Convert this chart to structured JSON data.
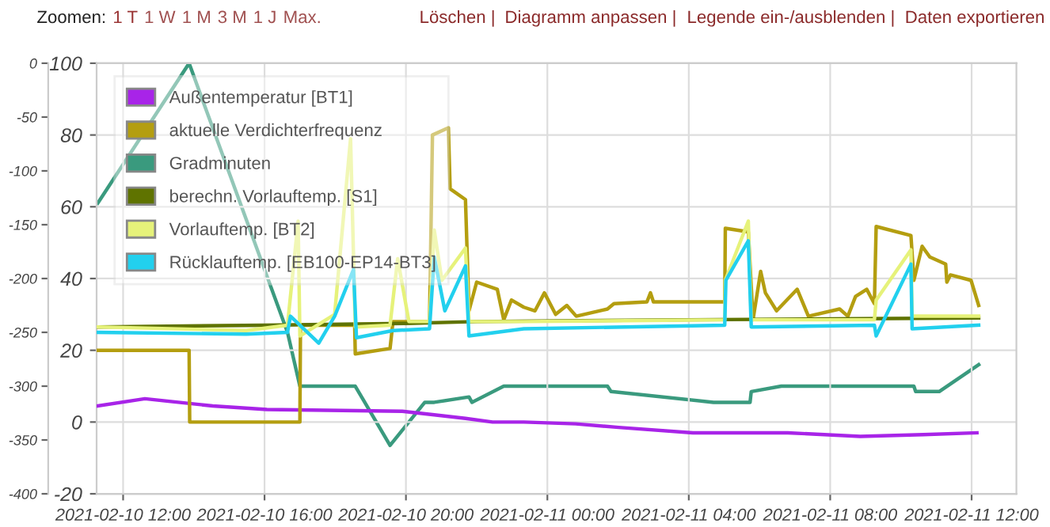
{
  "chart_data": {
    "type": "line",
    "annotations": [
      "Zoomen:",
      "1 T",
      "1 W",
      "1 M",
      "3 M",
      "1 J",
      "Max.",
      "Löschen |",
      "Diagramm anpassen |",
      "Legende ein-/ausblenden |",
      "Daten exportieren"
    ],
    "xlim": [
      "2021-02-10T11:15",
      "2021-02-11T13:16"
    ],
    "xticks": [
      {
        "value": "2021-02-10T12:00",
        "label": "2021-02-10 12:00"
      },
      {
        "value": "2021-02-10T16:00",
        "label": "2021-02-10 16:00"
      },
      {
        "value": "2021-02-10T20:00",
        "label": "2021-02-10 20:00"
      },
      {
        "value": "2021-02-11T00:00",
        "label": "2021-02-11 00:00"
      },
      {
        "value": "2021-02-11T04:00",
        "label": "2021-02-11 04:00"
      },
      {
        "value": "2021-02-11T08:00",
        "label": "2021-02-11 08:00"
      },
      {
        "value": "2021-02-11T12:00",
        "label": "2021-02-11 12:00"
      }
    ],
    "ylim": [
      -20,
      100
    ],
    "yticks": [
      -20,
      0,
      20,
      40,
      60,
      80,
      100
    ],
    "y2lim": [
      -400,
      0
    ],
    "y2ticks": [
      -400,
      -350,
      -300,
      -250,
      -200,
      -150,
      -100,
      -50,
      0
    ],
    "grid": true,
    "legend": "top left",
    "marker": "none",
    "line_style": "solid",
    "series": [
      {
        "name": "Außentemperatur [BT1]",
        "color": "#a824e8",
        "x": [
          "2021-02-10T11:17",
          "2021-02-10T12:37",
          "2021-02-10T14:32",
          "2021-02-10T16:04",
          "2021-02-10T19:54",
          "2021-02-10T20:48",
          "2021-02-10T21:41",
          "2021-02-10T22:27",
          "2021-02-10T23:20",
          "2021-02-11T00:48",
          "2021-02-11T02:01",
          "2021-02-11T04:07",
          "2021-02-11T06:48",
          "2021-02-11T08:51",
          "2021-02-11T10:38",
          "2021-02-11T12:09"
        ],
        "values": [
          4.5,
          6.5,
          4.5,
          3.5,
          3,
          2,
          1,
          0,
          0,
          -0.5,
          -1.5,
          -3,
          -3,
          -4,
          -3.5,
          -3
        ]
      },
      {
        "name": "aktuelle Verdichterfrequenz",
        "color": "#b49e10",
        "x": [
          "2021-02-10T11:17",
          "2021-02-10T13:52",
          "2021-02-10T13:53",
          "2021-02-10T17:00",
          "2021-02-10T17:01",
          "2021-02-10T18:33",
          "2021-02-10T18:34",
          "2021-02-10T19:33",
          "2021-02-10T19:38",
          "2021-02-10T20:40",
          "2021-02-10T20:45",
          "2021-02-10T21:12",
          "2021-02-10T21:15",
          "2021-02-10T21:41",
          "2021-02-10T21:47",
          "2021-02-10T22:00",
          "2021-02-10T22:35",
          "2021-02-10T22:46",
          "2021-02-10T22:59",
          "2021-02-10T23:20",
          "2021-02-10T23:39",
          "2021-02-10T23:55",
          "2021-02-11T00:14",
          "2021-02-11T00:33",
          "2021-02-11T00:49",
          "2021-02-11T01:42",
          "2021-02-11T01:53",
          "2021-02-11T02:49",
          "2021-02-11T02:55",
          "2021-02-11T03:00",
          "2021-02-11T05:01",
          "2021-02-11T05:02",
          "2021-02-11T05:41",
          "2021-02-11T05:49",
          "2021-02-11T06:02",
          "2021-02-11T06:10",
          "2021-02-11T06:29",
          "2021-02-11T07:04",
          "2021-02-11T07:23",
          "2021-02-11T08:16",
          "2021-02-11T08:30",
          "2021-02-11T08:43",
          "2021-02-11T09:02",
          "2021-02-11T09:15",
          "2021-02-11T09:18",
          "2021-02-11T10:17",
          "2021-02-11T10:22",
          "2021-02-11T10:36",
          "2021-02-11T10:49",
          "2021-02-11T11:16",
          "2021-02-11T11:18",
          "2021-02-11T11:24",
          "2021-02-11T11:59",
          "2021-02-11T12:12"
        ],
        "values": [
          20,
          20,
          0,
          0,
          27,
          27,
          19,
          20.5,
          28,
          28,
          80,
          82,
          65,
          62,
          31,
          39,
          37,
          28.5,
          34,
          32,
          31,
          36,
          30,
          32.5,
          29.5,
          31.5,
          33,
          33.5,
          36,
          33.5,
          33.5,
          54,
          53,
          28.5,
          42,
          36,
          31,
          37,
          29.5,
          31.5,
          29.5,
          35,
          37,
          33,
          54.5,
          52,
          39.5,
          49,
          46,
          44,
          39,
          41,
          39.5,
          32.5
        ]
      },
      {
        "name": "Gradminuten",
        "color": "#3a9a7e",
        "axis": "y2",
        "x": [
          "2021-02-10T11:17",
          "2021-02-10T13:52",
          "2021-02-10T16:39",
          "2021-02-10T17:00",
          "2021-02-10T18:34",
          "2021-02-10T19:33",
          "2021-02-10T20:32",
          "2021-02-10T20:48",
          "2021-02-10T21:47",
          "2021-02-10T21:52",
          "2021-02-10T22:46",
          "2021-02-11T01:42",
          "2021-02-11T01:48",
          "2021-02-11T04:42",
          "2021-02-11T05:44",
          "2021-02-11T05:46",
          "2021-02-11T06:37",
          "2021-02-11T10:22",
          "2021-02-11T10:25",
          "2021-02-11T11:05",
          "2021-02-11T12:12"
        ],
        "values": [
          -130,
          0,
          -250,
          -300,
          -300,
          -355,
          -315,
          -315,
          -310,
          -315,
          -300,
          -300,
          -305,
          -315,
          -315,
          -305,
          -300,
          -300,
          -305,
          -305,
          -280
        ]
      },
      {
        "name": "berechn. Vorlauftemp. [S1]",
        "color": "#5f7300",
        "x": [
          "2021-02-10T11:17",
          "2021-02-10T16:00",
          "2021-02-10T20:00",
          "2021-02-10T22:00",
          "2021-02-11T04:00",
          "2021-02-11T12:12"
        ],
        "values": [
          26.5,
          27,
          27.5,
          28,
          28.5,
          29
        ]
      },
      {
        "name": "Vorlauftemp. [BT2]",
        "color": "#e6f27a",
        "x": [
          "2021-02-10T11:17",
          "2021-02-10T15:29",
          "2021-02-10T16:39",
          "2021-02-10T16:57",
          "2021-02-10T17:00",
          "2021-02-10T17:59",
          "2021-02-10T18:26",
          "2021-02-10T18:34",
          "2021-02-10T19:33",
          "2021-02-10T19:46",
          "2021-02-10T20:05",
          "2021-02-10T20:40",
          "2021-02-10T20:48",
          "2021-02-10T21:01",
          "2021-02-10T21:41",
          "2021-02-10T21:47",
          "2021-02-10T23:20",
          "2021-02-11T05:01",
          "2021-02-11T05:02",
          "2021-02-11T05:41",
          "2021-02-11T05:46",
          "2021-02-11T09:15",
          "2021-02-11T09:18",
          "2021-02-11T10:17",
          "2021-02-11T10:19",
          "2021-02-11T12:12"
        ],
        "values": [
          26.5,
          25.5,
          27,
          56,
          24,
          30,
          79,
          26.5,
          27,
          45.5,
          28,
          28,
          53.5,
          39.5,
          48.5,
          28,
          28,
          28.5,
          39.5,
          56,
          28.5,
          28.5,
          34,
          48,
          29.5,
          29.5
        ]
      },
      {
        "name": "Rücklauftemp. [EB100-EP14-BT3]",
        "color": "#22d0ee",
        "x": [
          "2021-02-10T11:17",
          "2021-02-10T15:29",
          "2021-02-10T16:39",
          "2021-02-10T16:44",
          "2021-02-10T17:32",
          "2021-02-10T17:59",
          "2021-02-10T18:31",
          "2021-02-10T18:36",
          "2021-02-10T19:38",
          "2021-02-10T20:40",
          "2021-02-10T20:48",
          "2021-02-10T21:06",
          "2021-02-10T21:41",
          "2021-02-10T21:47",
          "2021-02-10T23:20",
          "2021-02-11T05:01",
          "2021-02-11T05:03",
          "2021-02-11T05:41",
          "2021-02-11T05:46",
          "2021-02-11T09:15",
          "2021-02-11T09:18",
          "2021-02-11T10:17",
          "2021-02-11T10:19",
          "2021-02-11T12:12"
        ],
        "values": [
          25,
          24.5,
          25,
          29.5,
          22,
          29.5,
          42.5,
          23.5,
          25.5,
          26,
          46,
          31,
          43.5,
          24,
          26,
          27,
          39.5,
          50.5,
          26.5,
          27,
          24,
          44,
          26,
          27
        ]
      }
    ]
  }
}
